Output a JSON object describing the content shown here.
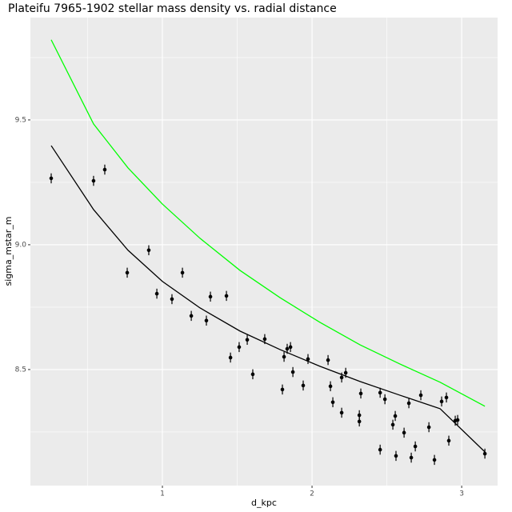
{
  "chart_data": {
    "type": "scatter",
    "title": "Plateifu 7965-1902 stellar mass density vs. radial distance",
    "x_label": "d_kpc",
    "y_label": "sigma_mstar_m",
    "xlim": [
      0.118,
      3.24
    ],
    "ylim": [
      8.035,
      9.91
    ],
    "xticks": [
      1,
      2,
      3
    ],
    "yticks": [
      8.5,
      {
        "value": 9,
        "label": "9.0"
      },
      9.5
    ],
    "minor_xticks": [
      0.5,
      1.5,
      2.5
    ],
    "minor_yticks": [
      8.25,
      8.75,
      9.25,
      9.75
    ],
    "grid": true,
    "error": 0.02,
    "series": [
      {
        "mode": "points",
        "color": "#000000",
        "x": [
          0.257,
          0.54,
          0.615,
          0.765,
          0.909,
          0.963,
          1.064,
          1.134,
          1.193,
          1.294,
          1.321,
          1.428,
          1.455,
          1.513,
          1.567,
          1.604,
          1.684,
          1.802,
          1.813,
          1.834,
          1.856,
          1.872,
          1.941,
          1.973,
          2.107,
          2.123,
          2.139,
          2.198,
          2.198,
          2.225,
          2.316,
          2.316,
          2.326,
          2.455,
          2.455,
          2.487,
          2.54,
          2.556,
          2.561,
          2.615,
          2.647,
          2.663,
          2.69,
          2.727,
          2.781,
          2.818,
          2.866,
          2.898,
          2.914,
          2.957,
          2.973,
          3.155
        ],
        "values": [
          9.266,
          9.256,
          9.301,
          8.888,
          8.978,
          8.804,
          8.782,
          8.888,
          8.715,
          8.696,
          8.792,
          8.795,
          8.548,
          8.59,
          8.619,
          8.481,
          8.622,
          8.42,
          8.551,
          8.583,
          8.59,
          8.49,
          8.436,
          8.542,
          8.538,
          8.433,
          8.369,
          8.327,
          8.468,
          8.487,
          8.292,
          8.317,
          8.404,
          8.179,
          8.407,
          8.381,
          8.279,
          8.314,
          8.154,
          8.247,
          8.365,
          8.147,
          8.192,
          8.397,
          8.269,
          8.138,
          8.372,
          8.388,
          8.215,
          8.295,
          8.298,
          8.163
        ]
      },
      {
        "mode": "line",
        "color": "#000000",
        "x": [
          0.257,
          0.54,
          0.77,
          1.0,
          1.251,
          1.519,
          1.786,
          2.053,
          2.321,
          2.588,
          2.856,
          3.155
        ],
        "values": [
          9.397,
          9.141,
          8.978,
          8.853,
          8.747,
          8.654,
          8.58,
          8.513,
          8.452,
          8.397,
          8.343,
          8.17
        ]
      },
      {
        "mode": "line",
        "color": "#00ff00",
        "x": [
          0.257,
          0.54,
          0.77,
          1.0,
          1.251,
          1.519,
          1.786,
          2.053,
          2.321,
          2.588,
          2.856,
          3.155
        ],
        "values": [
          9.821,
          9.484,
          9.308,
          9.163,
          9.026,
          8.897,
          8.788,
          8.689,
          8.599,
          8.522,
          8.449,
          8.353
        ]
      }
    ]
  }
}
